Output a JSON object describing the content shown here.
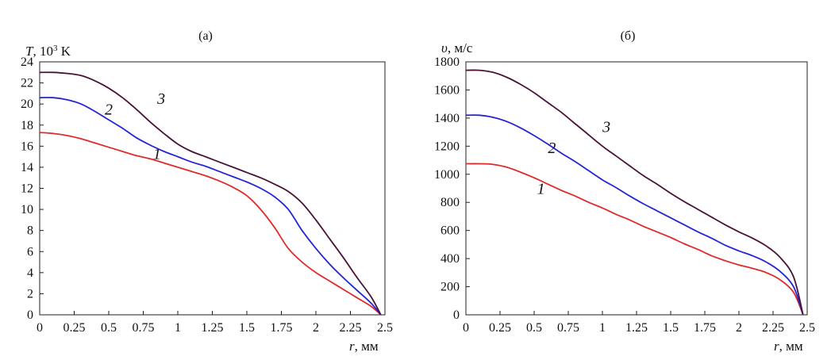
{
  "chart_data": [
    {
      "type": "line",
      "panel_label": "(а)",
      "ylabel_parts": {
        "var": "T",
        "mid": ", 10",
        "sup": "3",
        "unit": " K"
      },
      "xlabel_parts": {
        "var": "r",
        "unit": ",  мм"
      },
      "xlim": [
        0,
        2.5
      ],
      "ylim": [
        0,
        24
      ],
      "x_ticks": [
        0,
        0.25,
        0.5,
        0.75,
        1,
        1.25,
        1.5,
        1.75,
        2,
        2.25,
        2.5
      ],
      "x_tick_labels": [
        "0",
        "0.25",
        "0.5",
        "0.75",
        "1",
        "1.25",
        "1.5",
        "1.75",
        "2",
        "2.25",
        "2.5"
      ],
      "y_ticks": [
        0,
        2,
        4,
        6,
        8,
        10,
        12,
        14,
        16,
        18,
        20,
        22,
        24
      ],
      "y_tick_labels": [
        "0",
        "2",
        "4",
        "6",
        "8",
        "10",
        "12",
        "14",
        "16",
        "18",
        "20",
        "22",
        "24"
      ],
      "grid": false,
      "series": [
        {
          "curve_label": "1",
          "color": "#e02a2a",
          "label_at": [
            0.85,
            14.8
          ],
          "x": [
            0,
            0.1,
            0.2,
            0.3,
            0.4,
            0.5,
            0.6,
            0.7,
            0.8,
            0.9,
            1.0,
            1.1,
            1.2,
            1.3,
            1.4,
            1.5,
            1.6,
            1.7,
            1.8,
            1.9,
            2.0,
            2.1,
            2.2,
            2.3,
            2.4,
            2.47
          ],
          "y": [
            17.3,
            17.2,
            17.0,
            16.7,
            16.3,
            15.9,
            15.5,
            15.1,
            14.8,
            14.4,
            14.0,
            13.6,
            13.2,
            12.7,
            12.1,
            11.3,
            10.0,
            8.3,
            6.3,
            5.0,
            4.0,
            3.2,
            2.4,
            1.6,
            0.8,
            0.0
          ]
        },
        {
          "curve_label": "2",
          "color": "#2424d6",
          "label_at": [
            0.5,
            19.0
          ],
          "x": [
            0,
            0.1,
            0.2,
            0.3,
            0.4,
            0.5,
            0.6,
            0.7,
            0.8,
            0.9,
            1.0,
            1.1,
            1.2,
            1.3,
            1.4,
            1.5,
            1.6,
            1.7,
            1.8,
            1.9,
            2.0,
            2.1,
            2.2,
            2.3,
            2.4,
            2.47
          ],
          "y": [
            20.6,
            20.6,
            20.4,
            20.0,
            19.3,
            18.5,
            17.7,
            16.8,
            16.1,
            15.5,
            15.0,
            14.5,
            14.1,
            13.6,
            13.1,
            12.6,
            12.0,
            11.2,
            10.0,
            8.0,
            6.3,
            4.8,
            3.5,
            2.3,
            1.1,
            0.0
          ]
        },
        {
          "curve_label": "3",
          "color": "#4a1238",
          "label_at": [
            0.88,
            20.0
          ],
          "x": [
            0,
            0.1,
            0.2,
            0.3,
            0.4,
            0.5,
            0.6,
            0.7,
            0.8,
            0.9,
            1.0,
            1.1,
            1.2,
            1.3,
            1.4,
            1.5,
            1.6,
            1.7,
            1.8,
            1.9,
            2.0,
            2.1,
            2.2,
            2.3,
            2.4,
            2.47
          ],
          "y": [
            23.0,
            23.0,
            22.9,
            22.7,
            22.2,
            21.5,
            20.6,
            19.5,
            18.3,
            17.2,
            16.2,
            15.5,
            15.0,
            14.5,
            14.0,
            13.5,
            13.0,
            12.4,
            11.7,
            10.6,
            9.0,
            7.2,
            5.4,
            3.5,
            1.7,
            0.0
          ]
        }
      ]
    },
    {
      "type": "line",
      "panel_label": "(б)",
      "ylabel_parts": {
        "var": "υ",
        "mid": ", м/с",
        "sup": "",
        "unit": ""
      },
      "xlabel_parts": {
        "var": "r",
        "unit": ",  мм"
      },
      "xlim": [
        0,
        2.5
      ],
      "ylim": [
        0,
        1800
      ],
      "x_ticks": [
        0,
        0.25,
        0.5,
        0.75,
        1,
        1.25,
        1.5,
        1.75,
        2,
        2.25,
        2.5
      ],
      "x_tick_labels": [
        "0",
        "0.25",
        "0.5",
        "0.75",
        "1",
        "1.25",
        "1.5",
        "1.75",
        "2",
        "2.25",
        "2.5"
      ],
      "y_ticks": [
        0,
        200,
        400,
        600,
        800,
        1000,
        1200,
        1400,
        1600,
        1800
      ],
      "y_tick_labels": [
        "0",
        "200",
        "400",
        "600",
        "800",
        "1000",
        "1200",
        "1400",
        "1600",
        "1800"
      ],
      "grid": false,
      "series": [
        {
          "curve_label": "1",
          "color": "#e02a2a",
          "label_at": [
            0.55,
            860
          ],
          "x": [
            0,
            0.1,
            0.2,
            0.3,
            0.4,
            0.5,
            0.6,
            0.7,
            0.8,
            0.9,
            1.0,
            1.1,
            1.2,
            1.3,
            1.4,
            1.5,
            1.6,
            1.7,
            1.8,
            1.9,
            2.0,
            2.1,
            2.2,
            2.3,
            2.4,
            2.47
          ],
          "y": [
            1075,
            1075,
            1070,
            1050,
            1015,
            975,
            930,
            885,
            845,
            800,
            760,
            715,
            675,
            630,
            590,
            550,
            505,
            465,
            420,
            385,
            355,
            330,
            300,
            250,
            160,
            0
          ]
        },
        {
          "curve_label": "2",
          "color": "#2424d6",
          "label_at": [
            0.63,
            1150
          ],
          "x": [
            0,
            0.1,
            0.2,
            0.3,
            0.4,
            0.5,
            0.6,
            0.7,
            0.8,
            0.9,
            1.0,
            1.1,
            1.2,
            1.3,
            1.4,
            1.5,
            1.6,
            1.7,
            1.8,
            1.9,
            2.0,
            2.1,
            2.2,
            2.3,
            2.4,
            2.47
          ],
          "y": [
            1420,
            1420,
            1405,
            1375,
            1330,
            1275,
            1215,
            1150,
            1090,
            1025,
            960,
            905,
            845,
            790,
            740,
            690,
            640,
            590,
            545,
            495,
            455,
            420,
            375,
            310,
            200,
            0
          ]
        },
        {
          "curve_label": "3",
          "color": "#4a1238",
          "label_at": [
            1.03,
            1300
          ],
          "x": [
            0,
            0.1,
            0.2,
            0.3,
            0.4,
            0.5,
            0.6,
            0.7,
            0.8,
            0.9,
            1.0,
            1.1,
            1.2,
            1.3,
            1.4,
            1.5,
            1.6,
            1.7,
            1.8,
            1.9,
            2.0,
            2.1,
            2.2,
            2.3,
            2.4,
            2.47
          ],
          "y": [
            1740,
            1740,
            1725,
            1690,
            1640,
            1580,
            1510,
            1440,
            1360,
            1280,
            1200,
            1130,
            1060,
            990,
            930,
            865,
            805,
            750,
            695,
            640,
            590,
            545,
            490,
            410,
            270,
            0
          ]
        }
      ]
    }
  ]
}
